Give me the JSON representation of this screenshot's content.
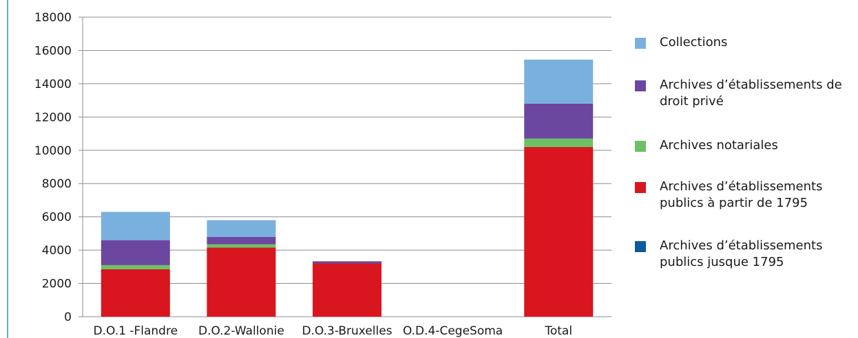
{
  "chart_data": {
    "type": "bar",
    "stacked": true,
    "categories": [
      "D.O.1 -Flandre",
      "D.O.2-Wallonie",
      "D.O.3-Bruxelles",
      "O.D.4-CegeSoma",
      "Total"
    ],
    "ylim": [
      0,
      18000
    ],
    "yticks": [
      0,
      2000,
      4000,
      6000,
      8000,
      10000,
      12000,
      14000,
      16000,
      18000
    ],
    "grid": true,
    "legend_position": "right",
    "series": [
      {
        "name": "Archives d’établissements publics jusque 1795",
        "color": "#0b5a9c",
        "values": [
          0,
          0,
          0,
          0,
          0
        ]
      },
      {
        "name": "Archives d’établissements publics à partir de 1795",
        "color": "#d9161f",
        "values": [
          2850,
          4150,
          3200,
          0,
          10200
        ]
      },
      {
        "name": "Archives notariales",
        "color": "#6cc165",
        "values": [
          250,
          200,
          0,
          0,
          500
        ]
      },
      {
        "name": "Archives d’établissements de droit privé",
        "color": "#6c47a0",
        "values": [
          1500,
          450,
          130,
          0,
          2100
        ]
      },
      {
        "name": "Collections",
        "color": "#7ab0de",
        "values": [
          1700,
          1000,
          0,
          0,
          2650
        ]
      }
    ]
  },
  "legend": {
    "items": [
      {
        "label": "Collections",
        "color": "#7ab0de"
      },
      {
        "label": "Archives d’établissements de droit privé",
        "color": "#6c47a0"
      },
      {
        "label": "Archives notariales",
        "color": "#6cc165"
      },
      {
        "label": "Archives d’établissements publics à partir de 1795",
        "color": "#d9161f"
      },
      {
        "label": "Archives d’établissements publics jusque 1795",
        "color": "#0b5a9c"
      }
    ]
  }
}
